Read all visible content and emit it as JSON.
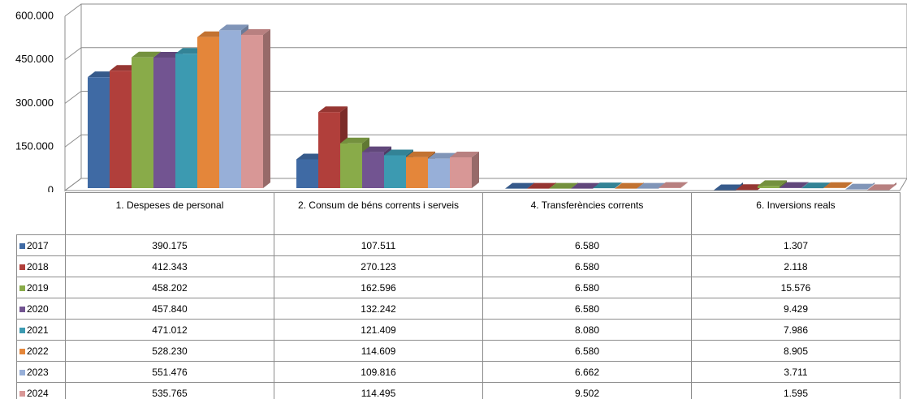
{
  "chart_data": {
    "type": "bar",
    "categories": [
      "1. Despeses de personal",
      "2. Consum de béns corrents i serveis",
      "4. Transferències corrents",
      "6. Inversions reals"
    ],
    "ylim": [
      0,
      600000
    ],
    "yticks": [
      0,
      {
        "value": 150000,
        "label": "150.000"
      },
      {
        "value": 300000,
        "label": "300.000"
      },
      {
        "value": 450000,
        "label": "450.000"
      },
      {
        "value": 600000,
        "label": "600.000"
      }
    ],
    "grid": true,
    "series": [
      {
        "name": "2017",
        "color": "#3f6aa4",
        "values": [
          390175,
          107511,
          6580,
          1307
        ],
        "value_labels": [
          "390.175",
          "107.511",
          "6.580",
          "1.307"
        ]
      },
      {
        "name": "2018",
        "color": "#b13f3b",
        "values": [
          412343,
          270123,
          6580,
          2118
        ],
        "value_labels": [
          "412.343",
          "270.123",
          "6.580",
          "2.118"
        ]
      },
      {
        "name": "2019",
        "color": "#89ab49",
        "values": [
          458202,
          162596,
          6580,
          15576
        ],
        "value_labels": [
          "458.202",
          "162.596",
          "6.580",
          "15.576"
        ]
      },
      {
        "name": "2020",
        "color": "#725491",
        "values": [
          457840,
          132242,
          6580,
          9429
        ],
        "value_labels": [
          "457.840",
          "132.242",
          "6.580",
          "9.429"
        ]
      },
      {
        "name": "2021",
        "color": "#3c9ab1",
        "values": [
          471012,
          121409,
          8080,
          7986
        ],
        "value_labels": [
          "471.012",
          "121.409",
          "8.080",
          "7.986"
        ]
      },
      {
        "name": "2022",
        "color": "#e4863a",
        "values": [
          528230,
          114609,
          6580,
          8905
        ],
        "value_labels": [
          "528.230",
          "114.609",
          "6.580",
          "8.905"
        ]
      },
      {
        "name": "2023",
        "color": "#97afd8",
        "values": [
          551476,
          109816,
          6662,
          3711
        ],
        "value_labels": [
          "551.476",
          "109.816",
          "6.662",
          "3.711"
        ]
      },
      {
        "name": "2024",
        "color": "#d89796",
        "values": [
          535765,
          114495,
          9502,
          1595
        ],
        "value_labels": [
          "535.765",
          "114.495",
          "9.502",
          "1.595"
        ]
      }
    ]
  }
}
